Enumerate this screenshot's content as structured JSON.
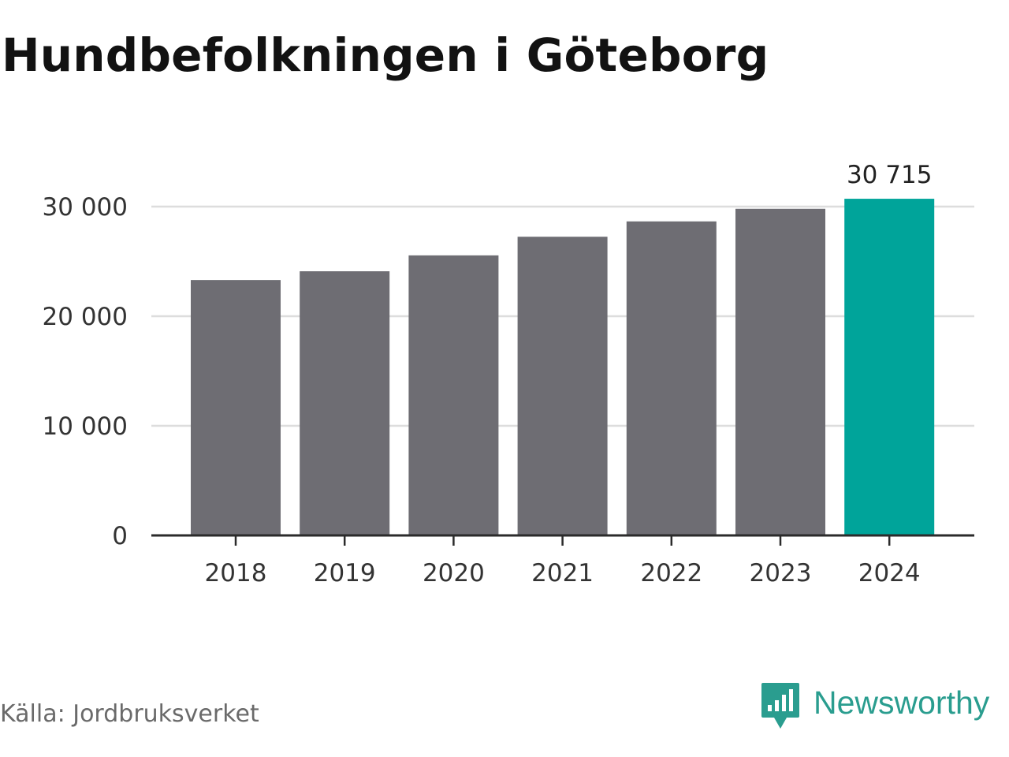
{
  "title": "Hundbefolkningen i Göteborg",
  "source": "Källa: Jordbruksverket",
  "brand": {
    "name": "Newsworthy",
    "icon": "newsworthy-logo-icon",
    "color": "#2a9d8f"
  },
  "colors": {
    "bar": "#6e6d73",
    "highlight": "#00a49a",
    "grid": "#dddddd",
    "axis": "#2b2b2b",
    "text": "#333333"
  },
  "chart_data": {
    "type": "bar",
    "title": "Hundbefolkningen i Göteborg",
    "xlabel": "",
    "ylabel": "",
    "categories": [
      "2018",
      "2019",
      "2020",
      "2021",
      "2022",
      "2023",
      "2024"
    ],
    "values": [
      23300,
      24100,
      25550,
      27250,
      28650,
      29800,
      30715
    ],
    "highlight_index": 6,
    "value_labels": [
      "",
      "",
      "",
      "",
      "",
      "",
      "30 715"
    ],
    "ylim": [
      0,
      30000
    ],
    "yticks": [
      0,
      10000,
      20000,
      30000
    ],
    "ytick_labels": [
      "0",
      "10 000",
      "20 000",
      "30 000"
    ],
    "grid": true,
    "legend": "none"
  }
}
